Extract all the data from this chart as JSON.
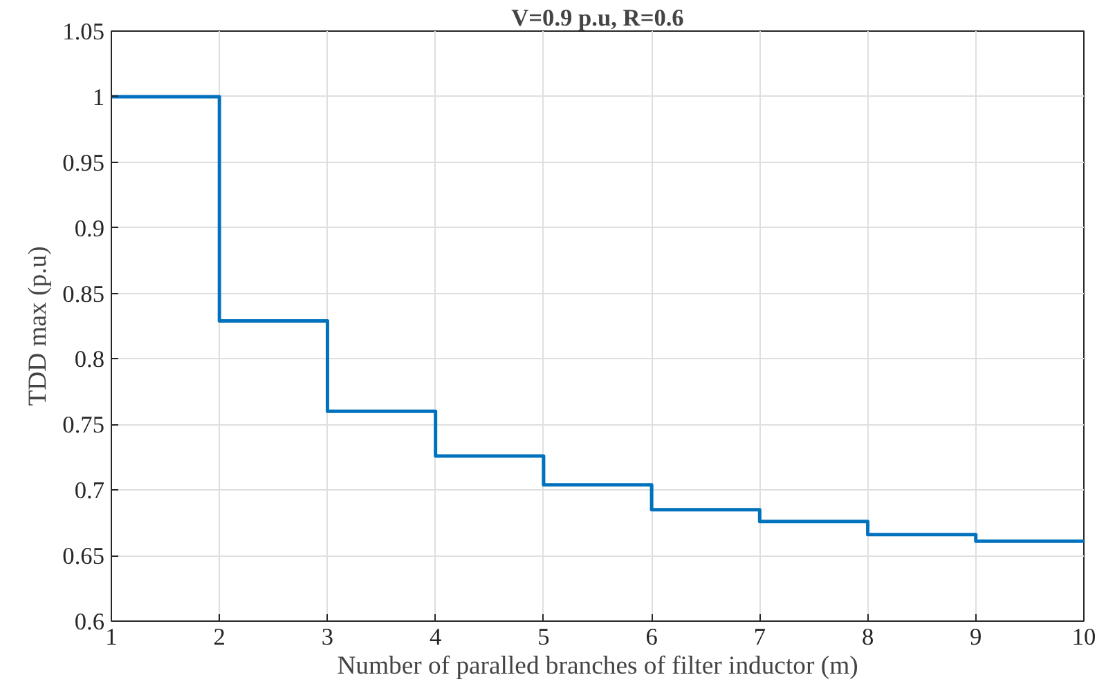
{
  "chart_data": {
    "type": "step",
    "title": "V=0.9 p.u, R=0.6",
    "xlabel": "Number of paralled branches of filter inductor (m)",
    "ylabel": "TDD max (p.u)",
    "x": [
      1,
      2,
      3,
      4,
      5,
      6,
      7,
      8,
      9,
      10
    ],
    "series": [
      {
        "color": "#0072bd",
        "values": [
          1.0,
          0.829,
          0.76,
          0.726,
          0.704,
          0.685,
          0.676,
          0.666,
          0.661,
          0.661
        ]
      }
    ],
    "xlim": [
      1,
      10
    ],
    "ylim": [
      0.6,
      1.05
    ],
    "xticks": [
      1,
      2,
      3,
      4,
      5,
      6,
      7,
      8,
      9,
      10
    ],
    "yticks": [
      0.6,
      0.65,
      0.7,
      0.75,
      0.8,
      0.85,
      0.9,
      0.95,
      1,
      1.05
    ],
    "grid": true
  }
}
